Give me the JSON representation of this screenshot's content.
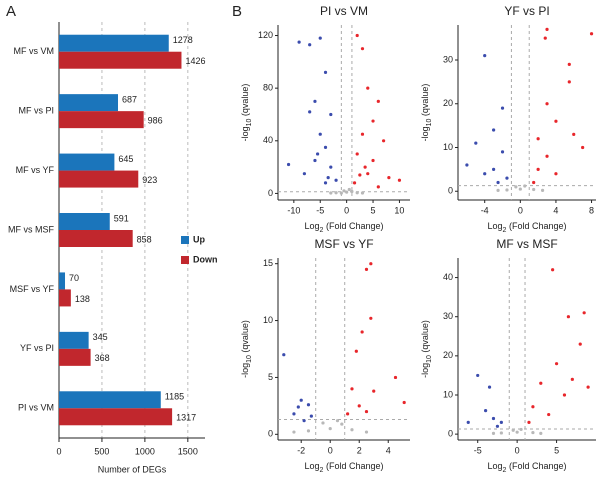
{
  "panel_labels": [
    "A",
    "B"
  ],
  "chart_data": [
    {
      "type": "bar",
      "orientation": "horizontal",
      "categories": [
        "MF vs VM",
        "MF vs PI",
        "MF vs YF",
        "MF vs MSF",
        "MSF vs YF",
        "YF vs PI",
        "PI vs VM"
      ],
      "series": [
        {
          "name": "Up",
          "color": "#1b75bb",
          "values": [
            1278,
            687,
            645,
            591,
            70,
            345,
            1185
          ]
        },
        {
          "name": "Down",
          "color": "#c1272d",
          "values": [
            1426,
            986,
            923,
            858,
            138,
            368,
            1317
          ]
        }
      ],
      "xlabel": "Number of DEGs",
      "xlim": [
        0,
        1700
      ],
      "xticks": [
        0,
        500,
        1000,
        1500
      ],
      "grid": true,
      "legend": "right-center"
    },
    {
      "type": "scatter",
      "title": "PI vs VM",
      "xlabel": [
        "Log",
        "2",
        " (Fold Change)"
      ],
      "ylabel": [
        "-log",
        "10",
        " (qvalue)"
      ],
      "xlim": [
        -13,
        12
      ],
      "xticks": [
        -10,
        -5,
        0,
        5,
        10
      ],
      "ylim": [
        -5,
        128
      ],
      "yticks": [
        0,
        40,
        80,
        120
      ],
      "thresholds": {
        "x": [
          -1,
          1
        ],
        "y": 1.3
      },
      "series": [
        {
          "color": "#3b4cad",
          "x": [
            -9,
            -7,
            -5,
            -4,
            -6,
            -7,
            -3,
            -5,
            -4,
            -6,
            -3,
            -8,
            -2,
            -4,
            -11,
            -5.5,
            -3.5
          ],
          "values": [
            115,
            113,
            118,
            92,
            70,
            62,
            60,
            45,
            35,
            25,
            20,
            15,
            10,
            8,
            22,
            30,
            12
          ]
        },
        {
          "color": "#e8262b",
          "x": [
            2,
            3,
            4,
            6,
            5,
            3,
            7,
            2,
            5,
            4,
            8,
            10,
            1.5,
            6,
            3.5,
            2.5
          ],
          "values": [
            120,
            110,
            80,
            70,
            55,
            45,
            40,
            30,
            25,
            15,
            12,
            10,
            8,
            5,
            20,
            14
          ]
        },
        {
          "color": "#b8b8b8",
          "x": [
            -0.5,
            0,
            0.5,
            -2,
            2,
            -1,
            1,
            -3,
            3
          ],
          "values": [
            2,
            1,
            3,
            0.5,
            0.5,
            0.2,
            1.5,
            0.3,
            0.3
          ]
        }
      ]
    },
    {
      "type": "scatter",
      "title": "YF vs PI",
      "xlabel": [
        "Log",
        "2",
        " (Fold Change)"
      ],
      "ylabel": [
        "-log",
        "10",
        " (qvalue)"
      ],
      "xlim": [
        -7,
        8.5
      ],
      "xticks": [
        -4,
        0,
        4,
        8
      ],
      "ylim": [
        -2,
        38
      ],
      "yticks": [
        0,
        10,
        20,
        30
      ],
      "thresholds": {
        "x": [
          -1,
          1
        ],
        "y": 1.3
      },
      "series": [
        {
          "color": "#3b4cad",
          "x": [
            -4,
            -2,
            -3,
            -5,
            -6,
            -2,
            -3,
            -1.5,
            -2.5,
            -4
          ],
          "values": [
            31,
            19,
            14,
            11,
            6,
            9,
            5,
            3,
            2,
            4
          ]
        },
        {
          "color": "#e8262b",
          "x": [
            8,
            3,
            2.8,
            5.5,
            5.5,
            3,
            4,
            6,
            2,
            7,
            3,
            2,
            4,
            1.5
          ],
          "values": [
            36,
            37,
            35,
            29,
            25,
            20,
            16,
            13,
            12,
            10,
            8,
            5,
            4,
            2
          ]
        },
        {
          "color": "#b8b8b8",
          "x": [
            -0.5,
            0,
            0.5,
            -1.5,
            1.5,
            -2.5,
            2.5
          ],
          "values": [
            1,
            0.5,
            1.2,
            0.3,
            0.4,
            0.2,
            0.2
          ]
        }
      ]
    },
    {
      "type": "scatter",
      "title": "MSF vs YF",
      "xlabel": [
        "Log",
        "2",
        " (Fold Change)"
      ],
      "ylabel": [
        "-log",
        "10",
        " (qvalue)"
      ],
      "xlim": [
        -3.6,
        5.5
      ],
      "xticks": [
        -2,
        0,
        2,
        4
      ],
      "ylim": [
        -0.5,
        15.5
      ],
      "yticks": [
        0,
        5,
        10,
        15
      ],
      "thresholds": {
        "x": [
          -1,
          1
        ],
        "y": 1.3
      },
      "series": [
        {
          "color": "#3b4cad",
          "x": [
            -3.2,
            -2,
            -1.5,
            -2.5,
            -1.8,
            -1.3,
            -2.2
          ],
          "values": [
            7,
            3,
            2.6,
            1.8,
            1.2,
            1.6,
            2.4
          ]
        },
        {
          "color": "#e8262b",
          "x": [
            2.8,
            2.5,
            2.8,
            2.2,
            1.8,
            4.5,
            3,
            1.5,
            2,
            1.2,
            2.5,
            5.1
          ],
          "values": [
            15,
            14.5,
            10.2,
            9,
            7.3,
            5,
            3.8,
            4,
            2.5,
            1.8,
            2,
            2.8
          ]
        },
        {
          "color": "#b8b8b8",
          "x": [
            -0.5,
            0,
            0.5,
            -1.5,
            1.5,
            -2.5,
            2.5,
            0.8
          ],
          "values": [
            1,
            0.5,
            1.2,
            0.3,
            0.4,
            0.2,
            0.2,
            0.9
          ]
        }
      ]
    },
    {
      "type": "scatter",
      "title": "MF vs MSF",
      "xlabel": [
        "Log",
        "2",
        " (Fold Change)"
      ],
      "ylabel": [
        "-log",
        "10",
        " (qvalue)"
      ],
      "xlim": [
        -7.5,
        10
      ],
      "xticks": [
        -5,
        0,
        5
      ],
      "ylim": [
        -1.5,
        45
      ],
      "yticks": [
        0,
        10,
        20,
        30,
        40
      ],
      "thresholds": {
        "x": [
          -1,
          1
        ],
        "y": 1.3
      },
      "series": [
        {
          "color": "#3b4cad",
          "x": [
            -3.5,
            -5,
            -6.2,
            -4,
            -3,
            -2,
            -2.5
          ],
          "values": [
            12,
            15,
            3,
            6,
            4,
            3,
            2
          ]
        },
        {
          "color": "#e8262b",
          "x": [
            4.5,
            8.5,
            6.5,
            8,
            5,
            7,
            3,
            6,
            2,
            4,
            9,
            1.5
          ],
          "values": [
            42,
            31,
            30,
            23,
            18,
            14,
            13,
            10,
            7,
            5,
            12,
            3
          ]
        },
        {
          "color": "#b8b8b8",
          "x": [
            -0.5,
            0,
            0.5,
            -2,
            2,
            -3,
            3
          ],
          "values": [
            1,
            0.5,
            1.2,
            0.3,
            0.4,
            0.2,
            0.2
          ]
        }
      ]
    }
  ]
}
